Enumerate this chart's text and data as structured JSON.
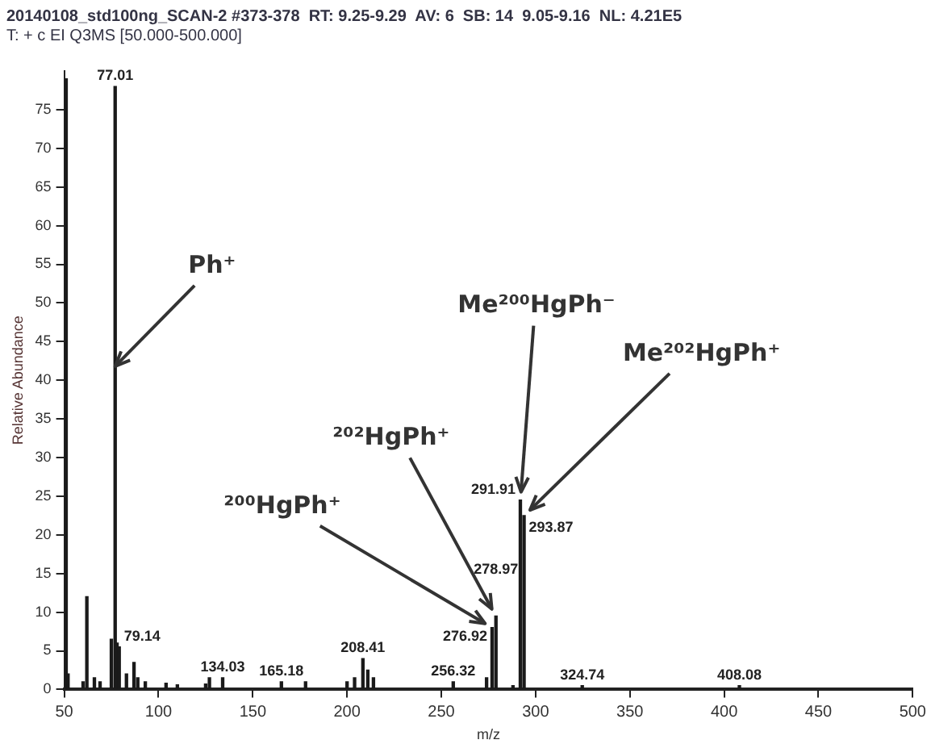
{
  "chart_data": {
    "type": "bar",
    "title": "20140108_std100ng_SCAN-2 #373-378  RT: 9.25-9.29  AV: 6  SB: 14  9.05-9.16  NL: 4.21E5",
    "subtitle": "T: + c EI Q3MS [50.000-500.000]",
    "xlabel": "m/z",
    "ylabel": "Relative Abundance",
    "color": "#1a1a1a",
    "x": [
      51,
      52,
      60,
      62,
      66,
      69,
      75,
      77.01,
      78,
      79.14,
      83,
      87,
      89,
      93,
      104,
      110,
      125,
      127,
      134.03,
      165.18,
      178,
      200,
      204,
      208.41,
      211,
      214,
      256.32,
      274,
      276.92,
      278.97,
      288,
      291.91,
      293.87,
      324.74,
      408.08
    ],
    "values": [
      79,
      2,
      1,
      12,
      1.5,
      1,
      6.5,
      78,
      6,
      5.5,
      2,
      3.5,
      1.5,
      1,
      0.8,
      0.6,
      0.7,
      1.5,
      1.5,
      1,
      1,
      1,
      1.5,
      4,
      2.5,
      1.5,
      1,
      1.5,
      8,
      9.5,
      0.5,
      24.5,
      22.5,
      0.5,
      0.5
    ],
    "xlim": [
      50,
      500
    ],
    "xticks": [
      50,
      100,
      150,
      200,
      250,
      300,
      350,
      400,
      450,
      500
    ],
    "ylim": [
      0,
      80
    ],
    "yticks": [
      0,
      5,
      10,
      15,
      20,
      25,
      30,
      35,
      40,
      45,
      50,
      55,
      60,
      65,
      70,
      75
    ],
    "annotations": [
      {
        "text": "Ph⁺",
        "x": 77.01,
        "y": 41.8
      },
      {
        "text": "²⁰⁰HgPh⁺",
        "x": 276.92,
        "y": 8
      },
      {
        "text": "²⁰²HgPh⁺",
        "x": 278.97,
        "y": 9.5
      },
      {
        "text": "Me²⁰⁰HgPh⁻",
        "x": 291.91,
        "y": 24.5
      },
      {
        "text": "Me²⁰²HgPh⁺",
        "x": 293.87,
        "y": 22.5
      },
      {
        "text": "77.01",
        "x": 77.01,
        "y": 78
      },
      {
        "text": "79.14",
        "x": 79.14,
        "y": 5.5
      },
      {
        "text": "134.03",
        "x": 134.03,
        "y": 1.5
      },
      {
        "text": "165.18",
        "x": 165.18,
        "y": 1
      },
      {
        "text": "208.41",
        "x": 208.41,
        "y": 4
      },
      {
        "text": "256.32",
        "x": 256.32,
        "y": 1
      },
      {
        "text": "276.92",
        "x": 276.92,
        "y": 8
      },
      {
        "text": "278.97",
        "x": 278.97,
        "y": 9.5
      },
      {
        "text": "291.91",
        "x": 291.91,
        "y": 24.5
      },
      {
        "text": "293.87",
        "x": 293.87,
        "y": 22.5
      },
      {
        "text": "324.74",
        "x": 324.74,
        "y": 0.5
      },
      {
        "text": "408.08",
        "x": 408.08,
        "y": 0.5
      }
    ],
    "grid": false,
    "legend": false
  }
}
